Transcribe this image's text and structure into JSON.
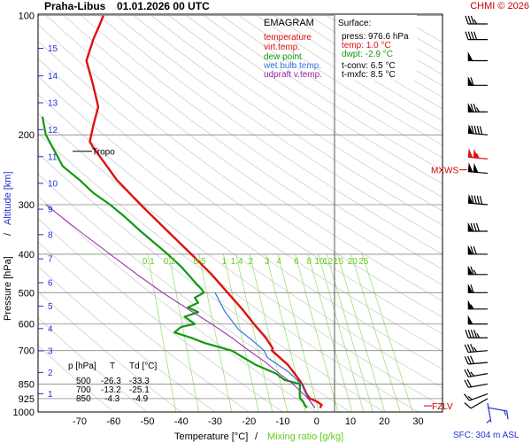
{
  "header": {
    "station": "Praha-Libus",
    "time": "01.01.2026 00 UTC",
    "credit": "CHMI © 2026"
  },
  "legend": {
    "title": "EMAGRAM",
    "items": [
      {
        "label": "temperature",
        "color": "#e01010"
      },
      {
        "label": "virt.temp.",
        "color": "#e01010"
      },
      {
        "label": "dew point",
        "color": "#119911"
      },
      {
        "label": "wet bulb temp.",
        "color": "#3377dd"
      },
      {
        "label": "udpraft v.temp.",
        "color": "#9922aa"
      }
    ]
  },
  "surface": {
    "title": "Surface:",
    "lines": [
      {
        "text": "press: 976.6 hPa",
        "color": "#000000"
      },
      {
        "text": "temp: 1.0 °C",
        "color": "#e01010"
      },
      {
        "text": "dwpt: -2.9 °C",
        "color": "#119911"
      },
      {
        "text": "t-conv: 6.5 °C",
        "color": "#000000"
      },
      {
        "text": "t-mxfc: 8.5 °C",
        "color": "#000000"
      }
    ]
  },
  "table": {
    "headers": [
      "p [hPa]",
      "T",
      "Td [°C]"
    ],
    "rows": [
      [
        "500",
        "-26.3",
        "-33.3"
      ],
      [
        "700",
        "-13.2",
        "-25.1"
      ],
      [
        "850",
        "-4.3",
        "-4.9"
      ]
    ]
  },
  "annotations": {
    "tropo": "Tropo",
    "mxws": "MXWS",
    "fzlv": "FZLV",
    "sfc": "SFC: 304 m ASL"
  },
  "chart_data": {
    "type": "line",
    "title": "Praha-Libus 01.01.2026 00 UTC",
    "xlabel": "Temperature [°C]",
    "xlabel_secondary": "Mixing ratio [g/kg]",
    "ylabel": "Pressure [hPa]",
    "ylabel_secondary": "Altitude [km]",
    "xlim": [
      -80,
      35
    ],
    "ylim": [
      1000,
      100
    ],
    "y_scale": "log",
    "grid": true,
    "x_ticks": [
      -70,
      -60,
      -50,
      -40,
      -30,
      -20,
      -10,
      0,
      10,
      20,
      30
    ],
    "y_ticks": [
      100,
      200,
      300,
      400,
      500,
      600,
      700,
      850,
      925,
      1000
    ],
    "altitude_km_ticks": [
      {
        "km": 1,
        "p": 900
      },
      {
        "km": 2,
        "p": 795
      },
      {
        "km": 3,
        "p": 701
      },
      {
        "km": 4,
        "p": 616
      },
      {
        "km": 5,
        "p": 541
      },
      {
        "km": 6,
        "p": 472
      },
      {
        "km": 7,
        "p": 411
      },
      {
        "km": 8,
        "p": 357
      },
      {
        "km": 9,
        "p": 308
      },
      {
        "km": 10,
        "p": 265
      },
      {
        "km": 11,
        "p": 227
      },
      {
        "km": 12,
        "p": 194
      },
      {
        "km": 13,
        "p": 166
      },
      {
        "km": 14,
        "p": 142
      },
      {
        "km": 15,
        "p": 121
      }
    ],
    "mixing_ratio_labels": [
      "0.1",
      "0.2",
      "0.5",
      "1",
      "1.4",
      "2",
      "3",
      "4",
      "6",
      "8",
      "10",
      "12",
      "15",
      "20",
      "25"
    ],
    "mixing_ratio_values": [
      0.1,
      0.2,
      0.5,
      1,
      1.4,
      2,
      3,
      4,
      6,
      8,
      10,
      12,
      15,
      20,
      25
    ],
    "tropopause_p": 220,
    "mxws_p": 245,
    "fzlv_p": 985,
    "series": [
      {
        "name": "temperature",
        "color": "#e01010",
        "points": [
          [
            1.0,
            976
          ],
          [
            1.5,
            960
          ],
          [
            0.0,
            940
          ],
          [
            -2.0,
            925
          ],
          [
            -3.0,
            900
          ],
          [
            -4.3,
            850
          ],
          [
            -6.5,
            800
          ],
          [
            -8.5,
            760
          ],
          [
            -13.2,
            700
          ],
          [
            -13.0,
            690
          ],
          [
            -15.0,
            650
          ],
          [
            -18.5,
            600
          ],
          [
            -22.0,
            550
          ],
          [
            -26.3,
            500
          ],
          [
            -31.0,
            450
          ],
          [
            -37.0,
            400
          ],
          [
            -44.0,
            350
          ],
          [
            -52.0,
            300
          ],
          [
            -59.0,
            260
          ],
          [
            -63.5,
            230
          ],
          [
            -66.0,
            215
          ],
          [
            -67.0,
            208
          ],
          [
            -66.0,
            190
          ],
          [
            -64.5,
            170
          ],
          [
            -66.0,
            150
          ],
          [
            -68.0,
            130
          ],
          [
            -66.0,
            115
          ],
          [
            -64.0,
            105
          ],
          [
            -63.0,
            100
          ]
        ]
      },
      {
        "name": "dew point",
        "color": "#119911",
        "points": [
          [
            -2.9,
            976
          ],
          [
            -3.5,
            960
          ],
          [
            -4.0,
            940
          ],
          [
            -4.9,
            925
          ],
          [
            -5.0,
            900
          ],
          [
            -4.9,
            850
          ],
          [
            -9.5,
            830
          ],
          [
            -12.0,
            800
          ],
          [
            -18.0,
            760
          ],
          [
            -25.1,
            700
          ],
          [
            -33.0,
            670
          ],
          [
            -37.0,
            650
          ],
          [
            -42.0,
            630
          ],
          [
            -40.0,
            610
          ],
          [
            -36.0,
            600
          ],
          [
            -39.0,
            575
          ],
          [
            -35.0,
            560
          ],
          [
            -38.0,
            545
          ],
          [
            -35.0,
            530
          ],
          [
            -36.0,
            515
          ],
          [
            -33.3,
            500
          ],
          [
            -34.0,
            490
          ],
          [
            -36.0,
            470
          ],
          [
            -40.0,
            430
          ],
          [
            -44.0,
            400
          ],
          [
            -52.0,
            350
          ],
          [
            -57.0,
            320
          ],
          [
            -61.0,
            300
          ],
          [
            -66.0,
            280
          ],
          [
            -70.0,
            260
          ],
          [
            -75.0,
            240
          ],
          [
            -80.0,
            200
          ],
          [
            -81.0,
            180
          ]
        ]
      },
      {
        "name": "wet bulb temp.",
        "color": "#3377dd",
        "points": [
          [
            -0.5,
            976
          ],
          [
            -2.5,
            925
          ],
          [
            -4.5,
            850
          ],
          [
            -8.5,
            790
          ],
          [
            -14.5,
            730
          ],
          [
            -15.5,
            700
          ],
          [
            -19.0,
            660
          ],
          [
            -23.0,
            620
          ],
          [
            -27.0,
            560
          ],
          [
            -30.0,
            500
          ]
        ]
      },
      {
        "name": "udpraft v.temp.",
        "color": "#9922aa",
        "points": [
          [
            -0.5,
            976
          ],
          [
            -2.5,
            925
          ],
          [
            -7.0,
            850
          ],
          [
            -11.0,
            800
          ],
          [
            -15.0,
            750
          ],
          [
            -20.0,
            700
          ],
          [
            -25.0,
            650
          ],
          [
            -31.0,
            600
          ],
          [
            -38.0,
            550
          ],
          [
            -45.5,
            500
          ],
          [
            -53.0,
            450
          ],
          [
            -61.0,
            400
          ],
          [
            -70.0,
            350
          ],
          [
            -80.0,
            300
          ]
        ]
      }
    ],
    "wind_barbs": [
      {
        "p": 975,
        "dir": 100,
        "kt": 15
      },
      {
        "p": 950,
        "dir": 170,
        "kt": 5
      },
      {
        "p": 925,
        "dir": 240,
        "kt": 10
      },
      {
        "p": 900,
        "dir": 250,
        "kt": 15
      },
      {
        "p": 850,
        "dir": 260,
        "kt": 20
      },
      {
        "p": 800,
        "dir": 260,
        "kt": 25
      },
      {
        "p": 750,
        "dir": 265,
        "kt": 30
      },
      {
        "p": 700,
        "dir": 265,
        "kt": 35
      },
      {
        "p": 650,
        "dir": 270,
        "kt": 45
      },
      {
        "p": 600,
        "dir": 270,
        "kt": 50
      },
      {
        "p": 550,
        "dir": 270,
        "kt": 55
      },
      {
        "p": 500,
        "dir": 270,
        "kt": 60
      },
      {
        "p": 450,
        "dir": 270,
        "kt": 65
      },
      {
        "p": 400,
        "dir": 270,
        "kt": 70
      },
      {
        "p": 350,
        "dir": 270,
        "kt": 80
      },
      {
        "p": 300,
        "dir": 275,
        "kt": 90
      },
      {
        "p": 250,
        "dir": 275,
        "kt": 100
      },
      {
        "p": 230,
        "dir": 275,
        "kt": 105
      },
      {
        "p": 200,
        "dir": 275,
        "kt": 90
      },
      {
        "p": 175,
        "dir": 270,
        "kt": 75
      },
      {
        "p": 150,
        "dir": 270,
        "kt": 60
      },
      {
        "p": 130,
        "dir": 270,
        "kt": 50
      },
      {
        "p": 115,
        "dir": 270,
        "kt": 40
      },
      {
        "p": 105,
        "dir": 270,
        "kt": 35
      }
    ]
  }
}
